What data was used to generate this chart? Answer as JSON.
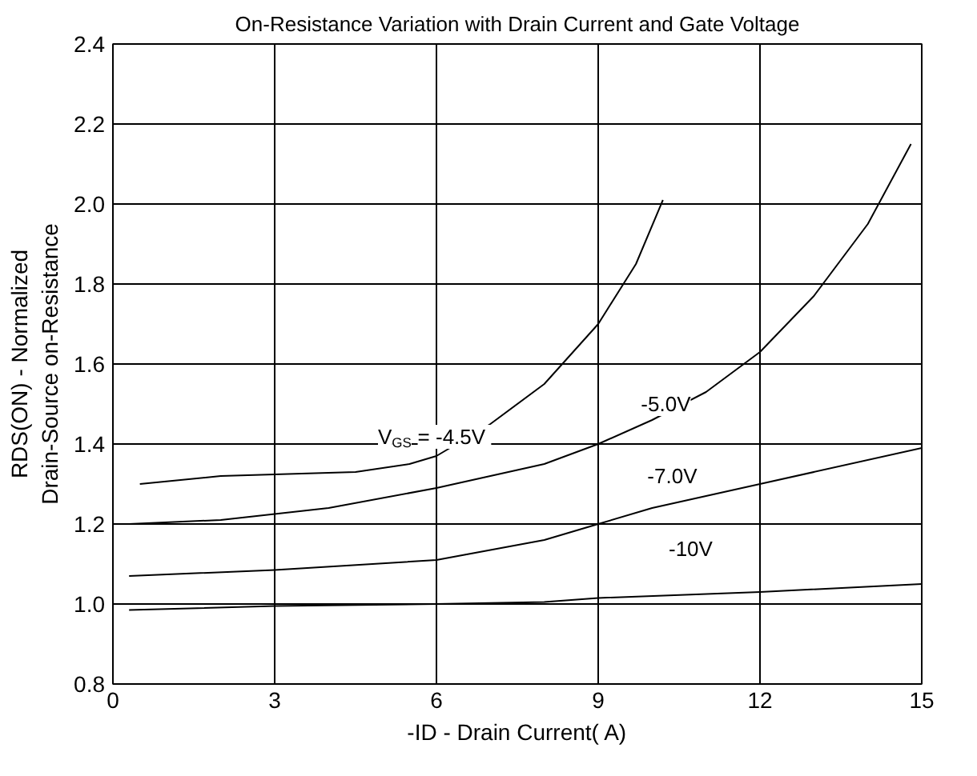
{
  "chart_data": {
    "type": "line",
    "title": "On-Resistance Variation with Drain Current and Gate Voltage",
    "xlabel": "-ID - Drain Current( A)",
    "ylabel": "RDS(ON) - Normalized\nDrain-Source on-Resistance",
    "xlim": [
      0,
      15
    ],
    "xticks": [
      0,
      3,
      6,
      9,
      12,
      15
    ],
    "ylim": [
      0.8,
      2.4
    ],
    "yticks": [
      0.8,
      {
        "value": 1,
        "label": "1.0"
      },
      1.2,
      1.4,
      1.6,
      1.8,
      {
        "value": 2,
        "label": "2.0"
      },
      2.2,
      2.4
    ],
    "grid": true,
    "marker": "none",
    "line_style": "solid",
    "series": [
      {
        "name": "V$_{GS}$ = -4.5V",
        "color": "#000000",
        "x": [
          0.5,
          2,
          4.5,
          5.5,
          6,
          7,
          8,
          9,
          9.7,
          10.2
        ],
        "values": [
          1.3,
          1.32,
          1.33,
          1.35,
          1.37,
          1.45,
          1.55,
          1.7,
          1.85,
          2.01
        ]
      },
      {
        "name": "-5.0V",
        "color": "#000000",
        "x": [
          0.3,
          2,
          4,
          6,
          8,
          9,
          10,
          11,
          12,
          13,
          14,
          14.8
        ],
        "values": [
          1.2,
          1.21,
          1.24,
          1.29,
          1.35,
          1.4,
          1.46,
          1.53,
          1.63,
          1.77,
          1.95,
          2.15
        ]
      },
      {
        "name": "-7.0V",
        "color": "#000000",
        "x": [
          0.3,
          3,
          6,
          8,
          9,
          10,
          12,
          15
        ],
        "values": [
          1.07,
          1.085,
          1.11,
          1.16,
          1.2,
          1.24,
          1.3,
          1.39
        ]
      },
      {
        "name": "-10V",
        "color": "#000000",
        "x": [
          0.3,
          3,
          6,
          8,
          9,
          12,
          15
        ],
        "values": [
          0.985,
          0.995,
          1.0,
          1.005,
          1.015,
          1.03,
          1.05
        ]
      }
    ]
  }
}
